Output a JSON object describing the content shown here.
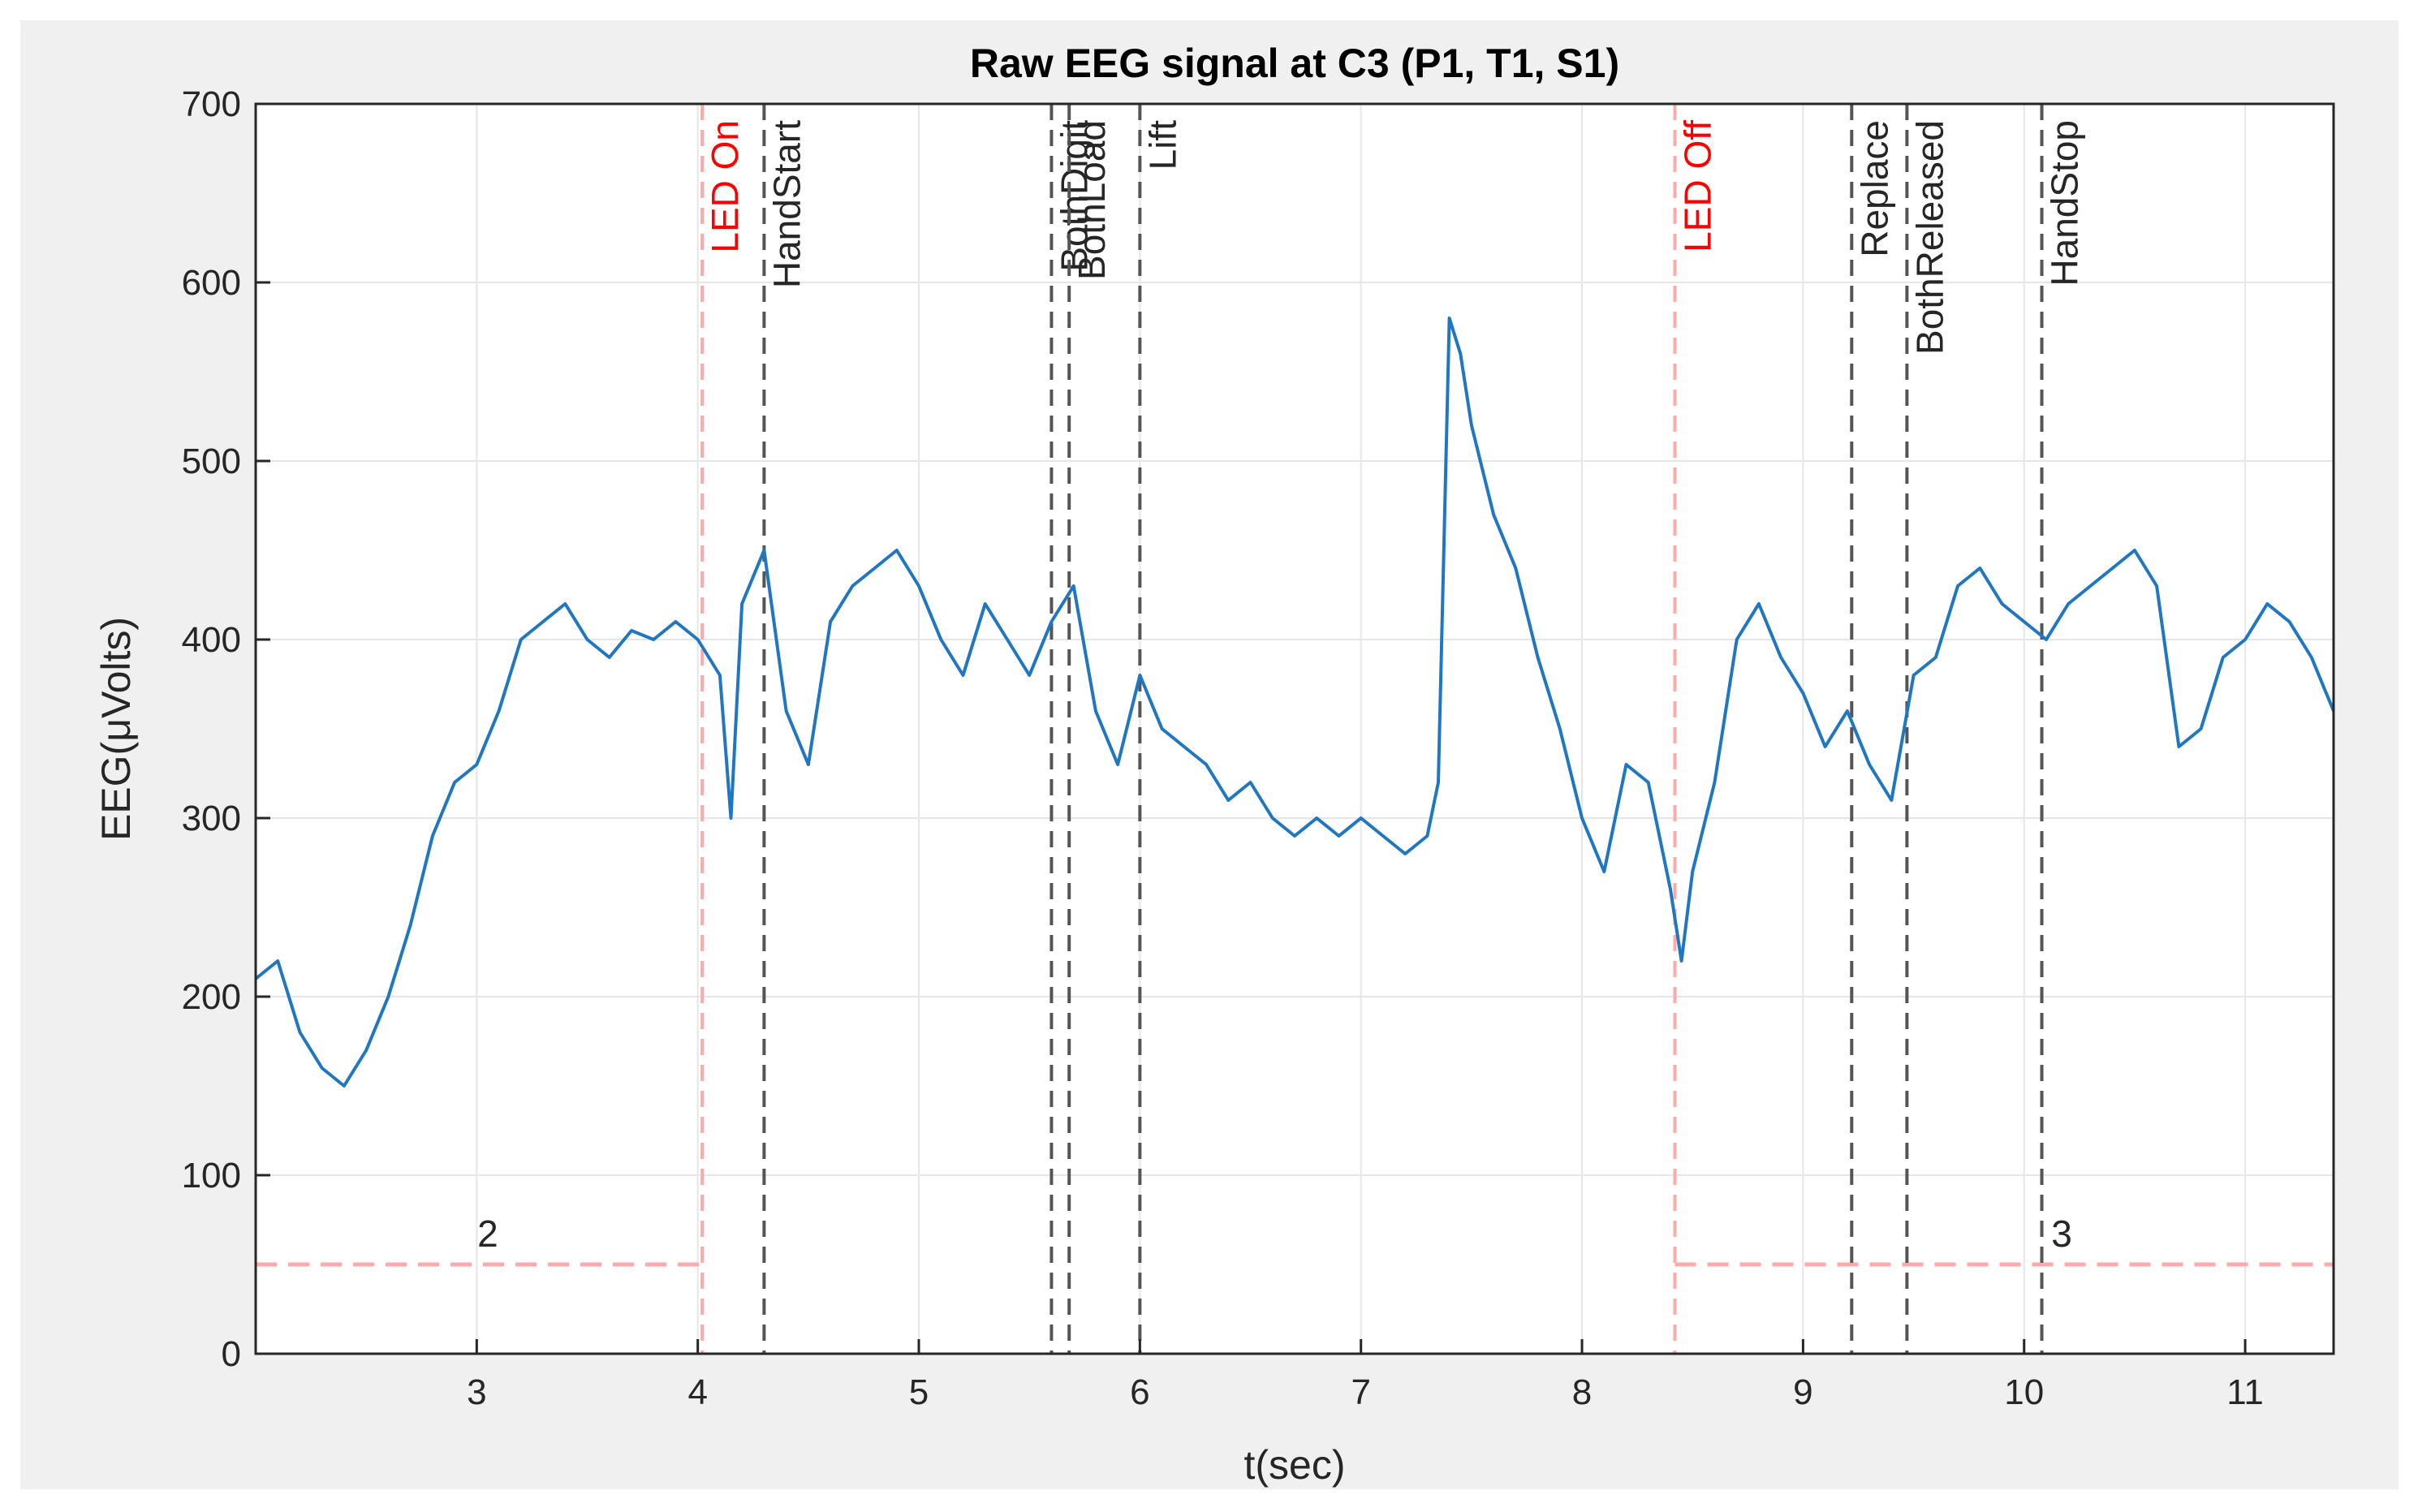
{
  "chart_data": {
    "type": "line",
    "title": "Raw EEG signal at C3 (P1, T1, S1)",
    "xlabel": "t(sec)",
    "ylabel": "EEG(μVolts)",
    "xlim": [
      2.0,
      11.4
    ],
    "ylim": [
      0,
      700
    ],
    "xticks": [
      3,
      4,
      5,
      6,
      7,
      8,
      9,
      10,
      11
    ],
    "yticks": [
      0,
      100,
      200,
      300,
      400,
      500,
      600,
      700
    ],
    "grid": true,
    "colors": {
      "signal": "#1f77c4",
      "led": "#ff0000",
      "event": "#262626",
      "trial_line": "#ffaaaa",
      "grid": "#e6e6e6",
      "axes_bg": "#ffffff",
      "figure_bg": "#f0f0f0"
    },
    "series": [
      {
        "name": "",
        "x": [
          2.0,
          2.1,
          2.2,
          2.3,
          2.4,
          2.5,
          2.6,
          2.7,
          2.8,
          2.9,
          3.0,
          3.1,
          3.2,
          3.3,
          3.4,
          3.5,
          3.6,
          3.7,
          3.8,
          3.9,
          4.0,
          4.1,
          4.15,
          4.2,
          4.3,
          4.4,
          4.5,
          4.6,
          4.7,
          4.8,
          4.9,
          5.0,
          5.1,
          5.2,
          5.3,
          5.4,
          5.5,
          5.6,
          5.7,
          5.8,
          5.9,
          6.0,
          6.1,
          6.2,
          6.3,
          6.4,
          6.5,
          6.6,
          6.7,
          6.8,
          6.9,
          7.0,
          7.1,
          7.2,
          7.3,
          7.35,
          7.4,
          7.45,
          7.5,
          7.6,
          7.7,
          7.8,
          7.9,
          8.0,
          8.1,
          8.2,
          8.3,
          8.4,
          8.45,
          8.5,
          8.6,
          8.7,
          8.8,
          8.9,
          9.0,
          9.1,
          9.2,
          9.3,
          9.4,
          9.5,
          9.6,
          9.7,
          9.8,
          9.9,
          10.0,
          10.1,
          10.2,
          10.3,
          10.4,
          10.5,
          10.6,
          10.7,
          10.8,
          10.9,
          11.0,
          11.1,
          11.2,
          11.3,
          11.4
        ],
        "y": [
          210,
          220,
          180,
          160,
          150,
          170,
          200,
          240,
          290,
          320,
          330,
          360,
          400,
          410,
          420,
          400,
          390,
          405,
          400,
          410,
          400,
          380,
          300,
          420,
          450,
          360,
          330,
          410,
          430,
          440,
          450,
          430,
          400,
          380,
          420,
          400,
          380,
          410,
          430,
          360,
          330,
          380,
          350,
          340,
          330,
          310,
          320,
          300,
          290,
          300,
          290,
          300,
          290,
          280,
          290,
          320,
          580,
          560,
          520,
          470,
          440,
          390,
          350,
          300,
          270,
          330,
          320,
          260,
          220,
          270,
          320,
          400,
          420,
          390,
          370,
          340,
          360,
          330,
          310,
          380,
          390,
          430,
          440,
          420,
          410,
          400,
          420,
          430,
          440,
          450,
          430,
          340,
          350,
          390,
          400,
          420,
          410,
          390,
          360
        ]
      }
    ],
    "events": [
      {
        "name": "LED On",
        "x": 4.02,
        "color": "led"
      },
      {
        "name": "HandStart",
        "x": 4.3,
        "color": "event"
      },
      {
        "name": "BothDigit",
        "x": 5.6,
        "color": "event"
      },
      {
        "name": "BothLoad",
        "x": 5.68,
        "color": "event"
      },
      {
        "name": "Lift",
        "x": 6.0,
        "color": "event"
      },
      {
        "name": "LED Off",
        "x": 8.42,
        "color": "led"
      },
      {
        "name": "Replace",
        "x": 9.22,
        "color": "event"
      },
      {
        "name": "BothReleased",
        "x": 9.47,
        "color": "event"
      },
      {
        "name": "HandStop",
        "x": 10.08,
        "color": "event"
      }
    ],
    "trial_markers": [
      {
        "label": "2",
        "x_start": 2.0,
        "x_end": 4.02,
        "y": 50,
        "label_x": 3.05
      },
      {
        "label": "3",
        "x_start": 8.42,
        "x_end": 11.4,
        "y": 50,
        "label_x": 10.17
      }
    ]
  }
}
